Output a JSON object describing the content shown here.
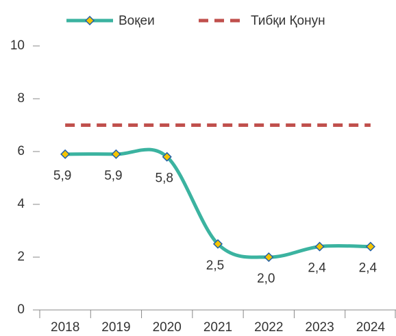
{
  "chart_data": {
    "type": "line",
    "categories": [
      "2018",
      "2019",
      "2020",
      "2021",
      "2022",
      "2023",
      "2024"
    ],
    "series": [
      {
        "name": "Воқеи",
        "color": "#3bb3a0",
        "values": [
          5.9,
          5.9,
          5.8,
          2.5,
          2.0,
          2.4,
          2.4
        ],
        "value_labels": [
          "5,9",
          "5,9",
          "5,8",
          "2,5",
          "2,0",
          "2,4",
          "2,4"
        ],
        "smooth": true,
        "marker": "diamond"
      },
      {
        "name": "Тибқи Қонун",
        "color": "#c0504d",
        "values": [
          7,
          7,
          7,
          7,
          7,
          7,
          7
        ],
        "dashed": true
      }
    ],
    "ylim": [
      0,
      10
    ],
    "yticks": [
      0,
      2,
      4,
      6,
      8,
      10
    ],
    "grid": false,
    "legend": "top"
  }
}
